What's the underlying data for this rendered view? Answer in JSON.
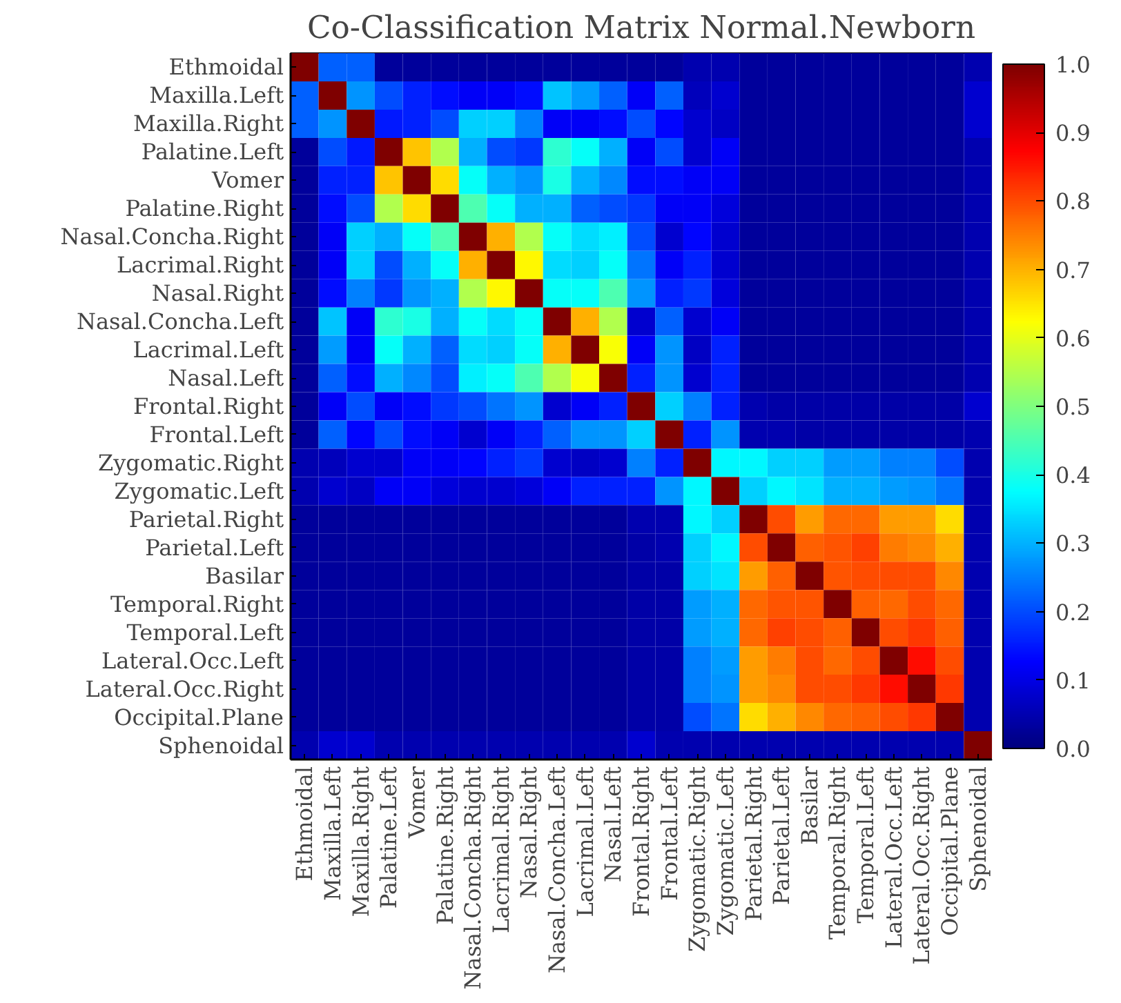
{
  "chart_data": {
    "type": "heatmap",
    "title": "Co-Classification Matrix Normal.Newborn",
    "categories": [
      "Ethmoidal",
      "Maxilla.Left",
      "Maxilla.Right",
      "Palatine.Left",
      "Vomer",
      "Palatine.Right",
      "Nasal.Concha.Right",
      "Lacrimal.Right",
      "Nasal.Right",
      "Nasal.Concha.Left",
      "Lacrimal.Left",
      "Nasal.Left",
      "Frontal.Right",
      "Frontal.Left",
      "Zygomatic.Right",
      "Zygomatic.Left",
      "Parietal.Right",
      "Parietal.Left",
      "Basilar",
      "Temporal.Right",
      "Temporal.Left",
      "Lateral.Occ.Left",
      "Lateral.Occ.Right",
      "Occipital.Plane",
      "Sphenoidal"
    ],
    "y_categories": [
      "Ethmoidal",
      "Maxilla.Left",
      "Maxilla.Right",
      "Palatine.Left",
      "Vomer",
      "Palatine.Right",
      "Nasal.Concha.Right",
      "Lacrimal.Right",
      "Nasal.Right",
      "Nasal.Concha.Left",
      "Lacrimal.Left",
      "Nasal.Left",
      "Frontal.Right",
      "Frontal.Left",
      "Zygomatic.Right",
      "Zygomatic.Left",
      "Parietal.Right",
      "Parietal.Left",
      "Basilar",
      "Temporal.Right",
      "Temporal.Left",
      "Lateral.Occ.Left",
      "Lateral.Occ.Right",
      "Occipital.Plane",
      "Sphenoidal"
    ],
    "cells": [
      [
        1.0,
        0.22,
        0.22,
        0.03,
        0.03,
        0.03,
        0.03,
        0.03,
        0.03,
        0.03,
        0.03,
        0.03,
        0.03,
        0.03,
        0.05,
        0.05,
        0.03,
        0.03,
        0.03,
        0.03,
        0.03,
        0.03,
        0.03,
        0.03,
        0.05
      ],
      [
        0.22,
        1.0,
        0.27,
        0.2,
        0.16,
        0.14,
        0.12,
        0.12,
        0.14,
        0.32,
        0.28,
        0.22,
        0.12,
        0.22,
        0.06,
        0.08,
        0.03,
        0.03,
        0.03,
        0.03,
        0.03,
        0.03,
        0.03,
        0.03,
        0.08
      ],
      [
        0.22,
        0.27,
        1.0,
        0.15,
        0.16,
        0.2,
        0.33,
        0.33,
        0.25,
        0.12,
        0.12,
        0.14,
        0.2,
        0.13,
        0.08,
        0.07,
        0.03,
        0.03,
        0.03,
        0.03,
        0.03,
        0.03,
        0.03,
        0.03,
        0.08
      ],
      [
        0.03,
        0.2,
        0.15,
        1.0,
        0.68,
        0.55,
        0.3,
        0.2,
        0.18,
        0.42,
        0.38,
        0.3,
        0.12,
        0.2,
        0.08,
        0.12,
        0.03,
        0.03,
        0.03,
        0.03,
        0.03,
        0.03,
        0.03,
        0.03,
        0.05
      ],
      [
        0.03,
        0.16,
        0.16,
        0.68,
        1.0,
        0.66,
        0.38,
        0.3,
        0.27,
        0.4,
        0.3,
        0.26,
        0.14,
        0.14,
        0.12,
        0.12,
        0.03,
        0.03,
        0.03,
        0.03,
        0.03,
        0.03,
        0.03,
        0.03,
        0.05
      ],
      [
        0.03,
        0.14,
        0.2,
        0.55,
        0.66,
        1.0,
        0.45,
        0.38,
        0.3,
        0.3,
        0.22,
        0.2,
        0.18,
        0.12,
        0.12,
        0.09,
        0.03,
        0.03,
        0.03,
        0.03,
        0.03,
        0.03,
        0.03,
        0.03,
        0.05
      ],
      [
        0.03,
        0.12,
        0.33,
        0.3,
        0.38,
        0.45,
        1.0,
        0.7,
        0.55,
        0.38,
        0.34,
        0.36,
        0.2,
        0.08,
        0.13,
        0.08,
        0.03,
        0.03,
        0.03,
        0.03,
        0.03,
        0.03,
        0.03,
        0.03,
        0.05
      ],
      [
        0.03,
        0.12,
        0.33,
        0.2,
        0.3,
        0.38,
        0.7,
        1.0,
        0.63,
        0.34,
        0.33,
        0.38,
        0.24,
        0.12,
        0.16,
        0.08,
        0.03,
        0.03,
        0.03,
        0.03,
        0.03,
        0.03,
        0.03,
        0.03,
        0.05
      ],
      [
        0.03,
        0.14,
        0.25,
        0.18,
        0.27,
        0.3,
        0.55,
        0.63,
        1.0,
        0.38,
        0.38,
        0.45,
        0.27,
        0.16,
        0.18,
        0.09,
        0.03,
        0.03,
        0.03,
        0.03,
        0.03,
        0.03,
        0.03,
        0.03,
        0.05
      ],
      [
        0.03,
        0.32,
        0.12,
        0.42,
        0.4,
        0.3,
        0.38,
        0.34,
        0.38,
        1.0,
        0.7,
        0.55,
        0.08,
        0.22,
        0.08,
        0.12,
        0.03,
        0.03,
        0.03,
        0.03,
        0.03,
        0.03,
        0.03,
        0.03,
        0.05
      ],
      [
        0.03,
        0.28,
        0.12,
        0.38,
        0.3,
        0.22,
        0.34,
        0.33,
        0.38,
        0.7,
        1.0,
        0.62,
        0.12,
        0.27,
        0.07,
        0.16,
        0.03,
        0.03,
        0.03,
        0.03,
        0.03,
        0.03,
        0.03,
        0.03,
        0.05
      ],
      [
        0.03,
        0.22,
        0.14,
        0.3,
        0.26,
        0.2,
        0.36,
        0.38,
        0.45,
        0.55,
        0.62,
        1.0,
        0.16,
        0.27,
        0.08,
        0.16,
        0.03,
        0.03,
        0.03,
        0.03,
        0.03,
        0.03,
        0.03,
        0.03,
        0.05
      ],
      [
        0.03,
        0.12,
        0.2,
        0.12,
        0.14,
        0.18,
        0.2,
        0.24,
        0.27,
        0.08,
        0.12,
        0.16,
        1.0,
        0.33,
        0.25,
        0.16,
        0.05,
        0.04,
        0.04,
        0.04,
        0.04,
        0.04,
        0.04,
        0.04,
        0.08
      ],
      [
        0.03,
        0.22,
        0.13,
        0.2,
        0.14,
        0.12,
        0.08,
        0.12,
        0.16,
        0.22,
        0.27,
        0.27,
        0.33,
        1.0,
        0.16,
        0.27,
        0.05,
        0.05,
        0.04,
        0.04,
        0.04,
        0.04,
        0.04,
        0.04,
        0.05
      ],
      [
        0.05,
        0.06,
        0.08,
        0.08,
        0.12,
        0.12,
        0.13,
        0.16,
        0.18,
        0.08,
        0.07,
        0.08,
        0.25,
        0.16,
        1.0,
        0.37,
        0.37,
        0.33,
        0.33,
        0.28,
        0.28,
        0.25,
        0.25,
        0.2,
        0.05
      ],
      [
        0.05,
        0.08,
        0.07,
        0.12,
        0.12,
        0.09,
        0.08,
        0.08,
        0.09,
        0.12,
        0.16,
        0.16,
        0.16,
        0.27,
        0.37,
        1.0,
        0.33,
        0.37,
        0.35,
        0.3,
        0.3,
        0.28,
        0.27,
        0.24,
        0.05
      ],
      [
        0.03,
        0.03,
        0.03,
        0.03,
        0.03,
        0.03,
        0.03,
        0.03,
        0.03,
        0.03,
        0.03,
        0.03,
        0.05,
        0.05,
        0.37,
        0.33,
        1.0,
        0.8,
        0.72,
        0.77,
        0.77,
        0.72,
        0.72,
        0.66,
        0.05
      ],
      [
        0.03,
        0.03,
        0.03,
        0.03,
        0.03,
        0.03,
        0.03,
        0.03,
        0.03,
        0.03,
        0.03,
        0.03,
        0.04,
        0.05,
        0.33,
        0.37,
        0.8,
        1.0,
        0.78,
        0.79,
        0.81,
        0.75,
        0.74,
        0.7,
        0.05
      ],
      [
        0.03,
        0.03,
        0.03,
        0.03,
        0.03,
        0.03,
        0.03,
        0.03,
        0.03,
        0.03,
        0.03,
        0.03,
        0.04,
        0.04,
        0.33,
        0.35,
        0.72,
        0.78,
        1.0,
        0.79,
        0.8,
        0.8,
        0.8,
        0.74,
        0.05
      ],
      [
        0.03,
        0.03,
        0.03,
        0.03,
        0.03,
        0.03,
        0.03,
        0.03,
        0.03,
        0.03,
        0.03,
        0.03,
        0.04,
        0.04,
        0.28,
        0.3,
        0.77,
        0.79,
        0.79,
        1.0,
        0.78,
        0.77,
        0.8,
        0.77,
        0.05
      ],
      [
        0.03,
        0.03,
        0.03,
        0.03,
        0.03,
        0.03,
        0.03,
        0.03,
        0.03,
        0.03,
        0.03,
        0.03,
        0.04,
        0.04,
        0.28,
        0.3,
        0.77,
        0.81,
        0.8,
        0.78,
        1.0,
        0.8,
        0.82,
        0.78,
        0.05
      ],
      [
        0.03,
        0.03,
        0.03,
        0.03,
        0.03,
        0.03,
        0.03,
        0.03,
        0.03,
        0.03,
        0.03,
        0.03,
        0.04,
        0.04,
        0.25,
        0.28,
        0.72,
        0.75,
        0.8,
        0.77,
        0.8,
        1.0,
        0.86,
        0.8,
        0.05
      ],
      [
        0.03,
        0.03,
        0.03,
        0.03,
        0.03,
        0.03,
        0.03,
        0.03,
        0.03,
        0.03,
        0.03,
        0.03,
        0.04,
        0.04,
        0.25,
        0.27,
        0.72,
        0.74,
        0.8,
        0.8,
        0.82,
        0.86,
        1.0,
        0.82,
        0.05
      ],
      [
        0.03,
        0.03,
        0.03,
        0.03,
        0.03,
        0.03,
        0.03,
        0.03,
        0.03,
        0.03,
        0.03,
        0.03,
        0.04,
        0.04,
        0.2,
        0.24,
        0.66,
        0.7,
        0.74,
        0.77,
        0.78,
        0.8,
        0.82,
        1.0,
        0.05
      ],
      [
        0.05,
        0.08,
        0.08,
        0.05,
        0.05,
        0.05,
        0.05,
        0.05,
        0.05,
        0.05,
        0.05,
        0.05,
        0.08,
        0.05,
        0.05,
        0.05,
        0.05,
        0.05,
        0.05,
        0.05,
        0.05,
        0.05,
        0.05,
        0.05,
        1.0
      ]
    ],
    "clim": [
      0.0,
      1.0
    ],
    "cticks": [
      {
        "value": 0.0,
        "label": "0.0"
      },
      {
        "value": 0.1,
        "label": "0.1"
      },
      {
        "value": 0.2,
        "label": "0.2"
      },
      {
        "value": 0.3,
        "label": "0.3"
      },
      {
        "value": 0.4,
        "label": "0.4"
      },
      {
        "value": 0.5,
        "label": "0.5"
      },
      {
        "value": 0.6,
        "label": "0.6"
      },
      {
        "value": 0.7,
        "label": "0.7"
      },
      {
        "value": 0.8,
        "label": "0.8"
      },
      {
        "value": 0.9,
        "label": "0.9"
      },
      {
        "value": 1.0,
        "label": "1.0"
      }
    ]
  }
}
